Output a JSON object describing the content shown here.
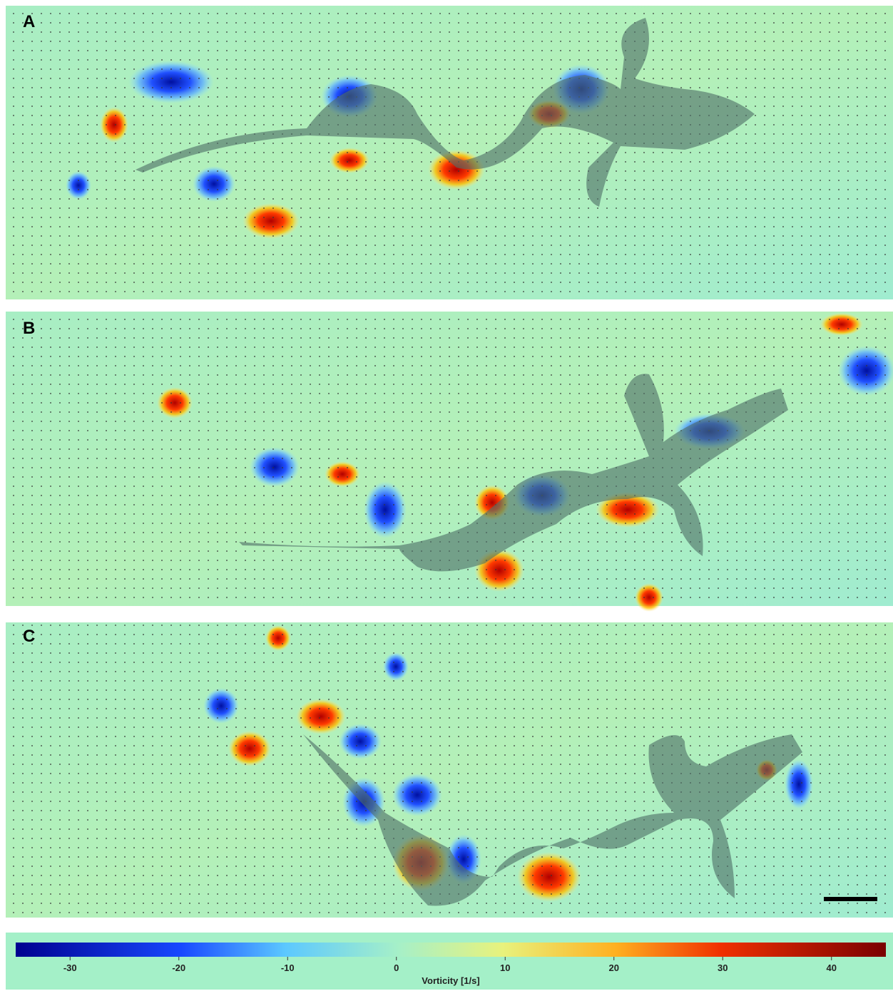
{
  "panels": [
    {
      "label": "A"
    },
    {
      "label": "B"
    },
    {
      "label": "C"
    }
  ],
  "colorbar": {
    "label": "Vorticity [1/s]",
    "lim": [
      -35,
      45
    ],
    "ticks": [
      -30,
      -20,
      -10,
      0,
      10,
      20,
      30,
      40
    ]
  }
}
